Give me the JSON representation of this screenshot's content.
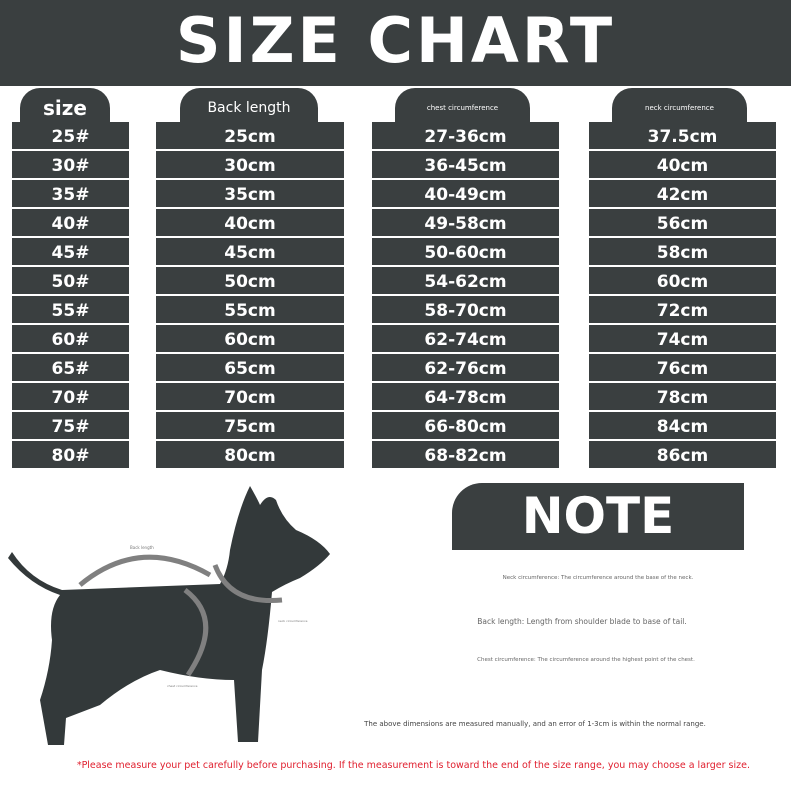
{
  "title": "SIZE CHART",
  "columns": [
    {
      "header": "size",
      "values": [
        "25#",
        "30#",
        "35#",
        "40#",
        "45#",
        "50#",
        "55#",
        "60#",
        "65#",
        "70#",
        "75#",
        "80#"
      ]
    },
    {
      "header": "Back length",
      "values": [
        "25cm",
        "30cm",
        "35cm",
        "40cm",
        "45cm",
        "50cm",
        "55cm",
        "60cm",
        "65cm",
        "70cm",
        "75cm",
        "80cm"
      ]
    },
    {
      "header": "chest circumference",
      "values": [
        "27-36cm",
        "36-45cm",
        "40-49cm",
        "49-58cm",
        "50-60cm",
        "54-62cm",
        "58-70cm",
        "62-74cm",
        "62-76cm",
        "64-78cm",
        "66-80cm",
        "68-82cm"
      ]
    },
    {
      "header": "neck circumference",
      "values": [
        "37.5cm",
        "40cm",
        "42cm",
        "56cm",
        "58cm",
        "60cm",
        "72cm",
        "74cm",
        "76cm",
        "78cm",
        "84cm",
        "86cm"
      ]
    }
  ],
  "diagram": {
    "back_label": "Back length",
    "neck_label": "neck circumference",
    "chest_label": "chest circumference"
  },
  "note": {
    "title": "NOTE",
    "neck": "Neck circumference: The circumference around the base of the neck.",
    "back": "Back length: Length from shoulder blade to base of tail.",
    "chest": "Chest circumference: The circumference around the highest point of the chest.",
    "error": "The above dimensions are measured manually, and an error of 1-3cm is within the normal range.",
    "warning": "*Please measure your pet carefully before purchasing. If the measurement is toward the end of the size range, you may choose a larger size."
  },
  "colors": {
    "dark": "#3a3f40",
    "arrow": "#808080",
    "warning": "#e0202f"
  }
}
